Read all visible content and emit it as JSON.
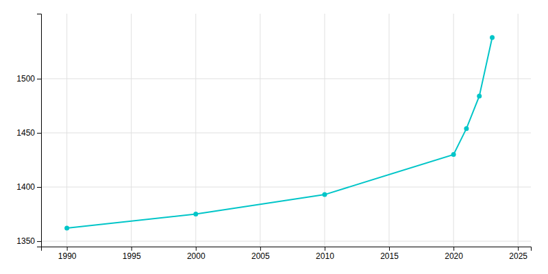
{
  "chart_data": {
    "type": "line",
    "x": [
      1990,
      2000,
      2010,
      2020,
      2021,
      2022,
      2023
    ],
    "values": [
      1362,
      1375,
      1393,
      1430,
      1454,
      1484,
      1538
    ],
    "color": "#00C5C8",
    "marker": "circle",
    "xlim": [
      1988,
      2026
    ],
    "ylim": [
      1345,
      1560
    ],
    "xticks": [
      1990,
      1995,
      2000,
      2005,
      2010,
      2015,
      2020,
      2025
    ],
    "yticks": [
      1350,
      1400,
      1450,
      1500
    ],
    "grid": true
  }
}
